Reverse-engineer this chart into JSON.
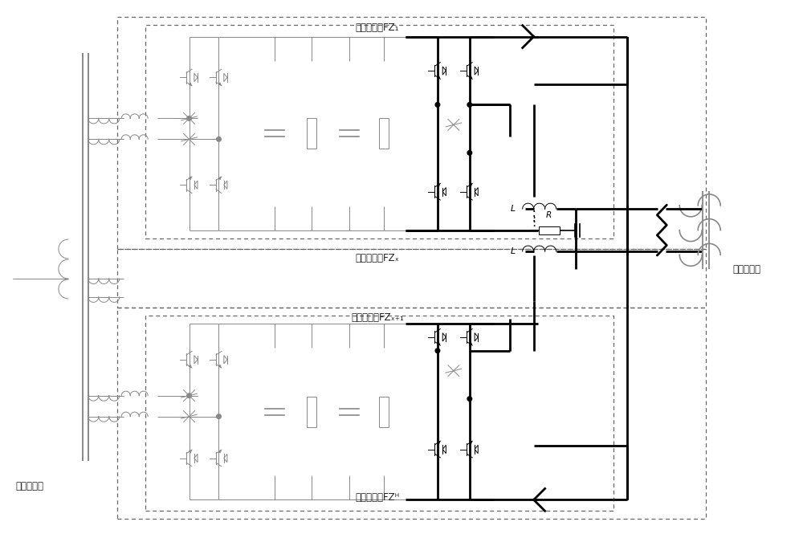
{
  "bg_color": "#ffffff",
  "gc": "#888888",
  "bc": "#000000",
  "dc": "#222222",
  "label_fz1": "背靠背阀组FZ₁",
  "label_fzx": "背靠背阀组FZₓ",
  "label_fzx1": "背靠背阀组FZₓ₊₁",
  "label_fzh": "背靠背阀组FZᴴ",
  "label_input": "输入变压器",
  "label_output": "输出变压器",
  "label_L": "L",
  "label_R": "R"
}
